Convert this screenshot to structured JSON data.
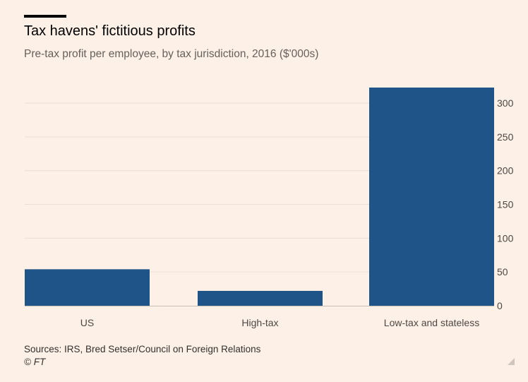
{
  "header": {
    "title": "Tax havens' fictitious profits",
    "subtitle": "Pre-tax profit per employee, by tax jurisdiction, 2016 ($'000s)"
  },
  "footer": {
    "source": "Sources: IRS, Bred Setser/Council on Foreign Relations",
    "copyright": "© FT"
  },
  "colors": {
    "background": "#fdf0e6",
    "bar": "#1f5489",
    "grid": "#e9dfd6",
    "axis": "#c8bfb7",
    "tick_text": "#4d4845"
  },
  "chart_data": {
    "type": "bar",
    "title": "Tax havens' fictitious profits",
    "subtitle": "Pre-tax profit per employee, by tax jurisdiction, 2016 ($'000s)",
    "categories": [
      "US",
      "High-tax",
      "Low-tax and stateless"
    ],
    "values": [
      54,
      22,
      323
    ],
    "ylim": [
      0,
      300
    ],
    "yticks": [
      0,
      50,
      100,
      150,
      200,
      250,
      300
    ],
    "yaxis_position": "right",
    "grid": true,
    "legend": "none"
  }
}
